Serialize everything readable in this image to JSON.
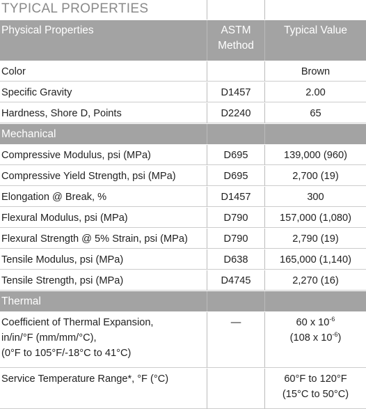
{
  "title": "TYPICAL PROPERTIES",
  "header": [
    "Physical Properties",
    [
      "ASTM",
      "Method"
    ],
    "Typical Value"
  ],
  "sections": [
    {
      "rows": [
        {
          "property": [
            "Color"
          ],
          "method": "",
          "value": [
            {
              "text": "Brown"
            }
          ]
        },
        {
          "property": [
            "Specific Gravity"
          ],
          "method": "D1457",
          "value": [
            {
              "text": "2.00"
            }
          ]
        },
        {
          "property": [
            "Hardness, Shore D, Points"
          ],
          "method": "D2240",
          "value": [
            {
              "text": "65"
            }
          ]
        }
      ]
    },
    {
      "name": "Mechanical",
      "rows": [
        {
          "property": [
            "Compressive Modulus, psi (MPa)"
          ],
          "method": "D695",
          "value": [
            {
              "text": "139,000 (960)"
            }
          ]
        },
        {
          "property": [
            "Compressive Yield Strength, psi (MPa)"
          ],
          "method": "D695",
          "value": [
            {
              "text": "2,700 (19)"
            }
          ]
        },
        {
          "property": [
            "Elongation @ Break, %"
          ],
          "method": "D1457",
          "value": [
            {
              "text": "300"
            }
          ]
        },
        {
          "property": [
            "Flexural Modulus, psi (MPa)"
          ],
          "method": "D790",
          "value": [
            {
              "text": "157,000 (1,080)"
            }
          ]
        },
        {
          "property": [
            "Flexural Strength @ 5% Strain, psi (MPa)"
          ],
          "method": "D790",
          "value": [
            {
              "text": "2,790 (19)"
            }
          ]
        },
        {
          "property": [
            "Tensile Modulus, psi (MPa)"
          ],
          "method": "D638",
          "value": [
            {
              "text": "165,000 (1,140)"
            }
          ]
        },
        {
          "property": [
            "Tensile Strength, psi (MPa)"
          ],
          "method": "D4745",
          "value": [
            {
              "text": "2,270 (16)"
            }
          ]
        }
      ]
    },
    {
      "name": "Thermal",
      "rows": [
        {
          "property": [
            "Coefficient of Thermal Expansion,",
            "in/in/°F (mm/mm/°C),",
            "(0°F to 105°F/-18°C to 41°C)"
          ],
          "method": "—",
          "value": [
            {
              "text": "60 x 10",
              "sup": "-6"
            },
            {
              "text": "(108 x 10",
              "sup": "-6",
              "after": ")"
            }
          ]
        },
        {
          "property": [
            "Service Temperature Range*, °F (°C)"
          ],
          "method": "",
          "value": [
            {
              "text": "60°F to 120°F"
            },
            {
              "text": "(15°C to 50°C)"
            }
          ]
        }
      ]
    }
  ]
}
